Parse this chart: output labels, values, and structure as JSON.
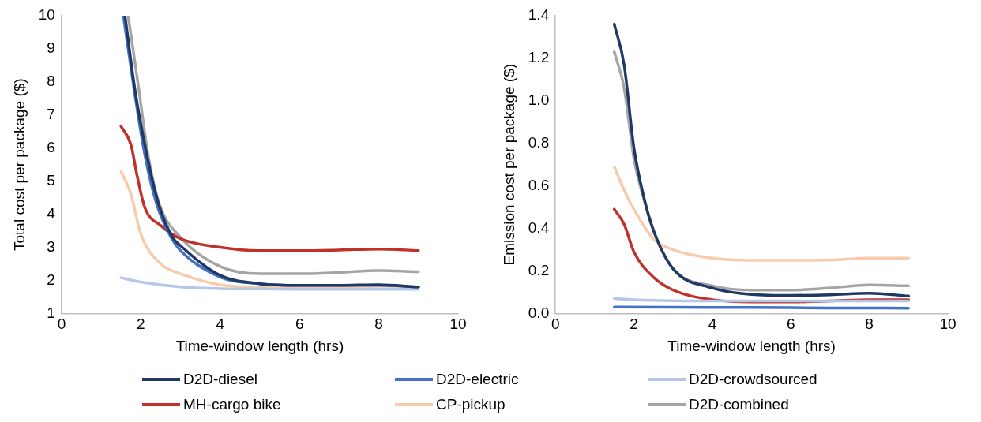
{
  "chart_data": [
    {
      "type": "line",
      "xlabel": "Time-window length (hrs)",
      "ylabel": "Total cost per package ($)",
      "xlim": [
        0,
        10
      ],
      "xticks": [
        0,
        2,
        4,
        6,
        8,
        10
      ],
      "ylim": [
        1,
        10
      ],
      "yticks": [
        1,
        2,
        3,
        4,
        5,
        6,
        7,
        8,
        9,
        10
      ],
      "grid": false,
      "legend": "bottom",
      "marker": "none",
      "line_style": "solid",
      "series": [
        {
          "name": "D2D-diesel",
          "color": "#1f3864",
          "x": [
            1.6,
            1.85,
            2.15,
            2.45,
            2.8,
            3,
            4,
            5,
            6,
            7,
            8,
            9
          ],
          "values": [
            10,
            7.77,
            5.8,
            4.3,
            3.3,
            3.05,
            2.15,
            1.9,
            1.85,
            1.85,
            1.87,
            1.8
          ]
        },
        {
          "name": "D2D-electric",
          "color": "#4472c4",
          "x": [
            1.56,
            1.83,
            2.1,
            2.4,
            2.76,
            3,
            4,
            5,
            6,
            7,
            8,
            9
          ],
          "values": [
            10,
            7.77,
            5.8,
            4.3,
            3.3,
            2.9,
            2.1,
            1.9,
            1.85,
            1.85,
            1.85,
            1.8
          ]
        },
        {
          "name": "D2D-crowdsourced",
          "color": "#b4c7e7",
          "x": [
            1.5,
            2,
            3,
            4,
            5,
            6,
            7,
            8,
            9
          ],
          "values": [
            2.08,
            1.95,
            1.8,
            1.75,
            1.74,
            1.73,
            1.73,
            1.73,
            1.73
          ]
        },
        {
          "name": "MH-cargo bike",
          "color": "#c0312b",
          "x": [
            1.5,
            1.75,
            1.9,
            2.1,
            2.5,
            3,
            4,
            5,
            6,
            7,
            8,
            9
          ],
          "values": [
            6.66,
            6.1,
            5.2,
            4.2,
            3.66,
            3.26,
            3,
            2.9,
            2.9,
            2.92,
            2.95,
            2.9
          ]
        },
        {
          "name": "CP-pickup",
          "color": "#f8cbad",
          "x": [
            1.5,
            1.75,
            2,
            2.5,
            3,
            4,
            5,
            6,
            7,
            8,
            9
          ],
          "values": [
            5.3,
            4.6,
            3.4,
            2.5,
            2.2,
            1.87,
            1.8,
            1.8,
            1.8,
            1.82,
            1.8
          ]
        },
        {
          "name": "D2D-combined",
          "color": "#a5a5a5",
          "x": [
            1.68,
            1.95,
            2.18,
            2.47,
            3,
            4,
            5,
            6,
            7,
            8,
            9
          ],
          "values": [
            10,
            7.77,
            5.8,
            4.3,
            3.3,
            2.42,
            2.2,
            2.2,
            2.24,
            2.3,
            2.26
          ]
        }
      ]
    },
    {
      "type": "line",
      "xlabel": "Time-window length (hrs)",
      "ylabel": "Emission cost per package ($)",
      "xlim": [
        0,
        10
      ],
      "xticks": [
        0,
        2,
        4,
        6,
        8,
        10
      ],
      "ylim": [
        0,
        1.4
      ],
      "yticks": [
        {
          "value": 0,
          "label": "0.0"
        },
        {
          "value": 0.2,
          "label": "0.2"
        },
        {
          "value": 0.4,
          "label": "0.4"
        },
        {
          "value": 0.6,
          "label": "0.6"
        },
        {
          "value": 0.8,
          "label": "0.8"
        },
        {
          "value": 1,
          "label": "1.0"
        },
        {
          "value": 1.2,
          "label": "1.2"
        },
        {
          "value": 1.4,
          "label": "1.4"
        }
      ],
      "grid": false,
      "marker": "none",
      "line_style": "solid",
      "series": [
        {
          "color": "#1f3864",
          "x": [
            1.5,
            1.75,
            2,
            2.25,
            2.5,
            3,
            4,
            5,
            6,
            7,
            8,
            9
          ],
          "values": [
            1.36,
            1.17,
            0.78,
            0.55,
            0.39,
            0.21,
            0.12,
            0.09,
            0.085,
            0.088,
            0.095,
            0.082
          ]
        },
        {
          "color": "#4472c4",
          "x": [
            1.5,
            3,
            5,
            7,
            9
          ],
          "values": [
            0.03,
            0.029,
            0.028,
            0.026,
            0.025
          ]
        },
        {
          "color": "#b4c7e7",
          "x": [
            1.5,
            2,
            3,
            4,
            5,
            6,
            7,
            8,
            9
          ],
          "values": [
            0.07,
            0.065,
            0.06,
            0.059,
            0.059,
            0.059,
            0.059,
            0.059,
            0.059
          ]
        },
        {
          "color": "#c0312b",
          "x": [
            1.5,
            1.75,
            2,
            2.5,
            3,
            4,
            5,
            6,
            7,
            8,
            9
          ],
          "values": [
            0.49,
            0.42,
            0.29,
            0.17,
            0.11,
            0.065,
            0.054,
            0.054,
            0.059,
            0.065,
            0.065
          ]
        },
        {
          "color": "#f8cbad",
          "x": [
            1.5,
            1.75,
            2,
            2.5,
            3,
            4,
            5,
            6,
            7,
            8,
            9
          ],
          "values": [
            0.69,
            0.58,
            0.49,
            0.35,
            0.3,
            0.26,
            0.25,
            0.25,
            0.252,
            0.26,
            0.26
          ]
        },
        {
          "color": "#a5a5a5",
          "x": [
            1.5,
            1.75,
            2,
            2.25,
            2.5,
            3,
            4,
            5,
            6,
            7,
            8,
            9
          ],
          "values": [
            1.23,
            1.06,
            0.73,
            0.54,
            0.39,
            0.21,
            0.13,
            0.11,
            0.11,
            0.12,
            0.134,
            0.13
          ]
        }
      ]
    }
  ]
}
